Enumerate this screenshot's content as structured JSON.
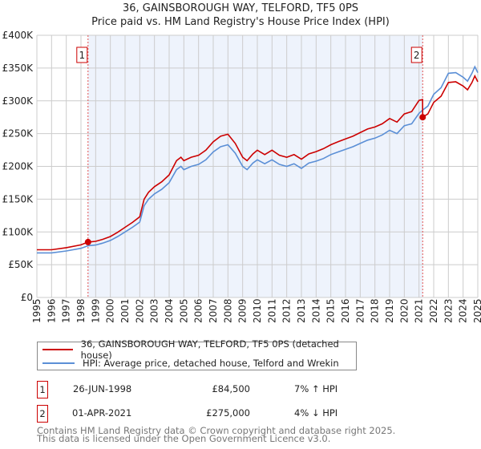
{
  "chart_data": {
    "type": "line",
    "title": "36, GAINSBOROUGH WAY, TELFORD, TF5 0PS",
    "subtitle": "Price paid vs. HM Land Registry's House Price Index (HPI)",
    "xlabel": "",
    "ylabel": "",
    "xlim": [
      1995,
      2025
    ],
    "ylim": [
      0,
      400000
    ],
    "x_ticks": [
      "1995",
      "1996",
      "1997",
      "1998",
      "1999",
      "2000",
      "2001",
      "2002",
      "2003",
      "2004",
      "2005",
      "2006",
      "2007",
      "2008",
      "2009",
      "2010",
      "2011",
      "2012",
      "2013",
      "2014",
      "2015",
      "2016",
      "2017",
      "2018",
      "2019",
      "2020",
      "2021",
      "2022",
      "2023",
      "2024",
      "2025"
    ],
    "y_ticks": [
      {
        "v": 0,
        "label": "£0"
      },
      {
        "v": 50000,
        "label": "£50K"
      },
      {
        "v": 100000,
        "label": "£100K"
      },
      {
        "v": 150000,
        "label": "£150K"
      },
      {
        "v": 200000,
        "label": "£200K"
      },
      {
        "v": 250000,
        "label": "£250K"
      },
      {
        "v": 300000,
        "label": "£300K"
      },
      {
        "v": 350000,
        "label": "£350K"
      },
      {
        "v": 400000,
        "label": "£400K"
      }
    ],
    "grid": true,
    "shaded_range": [
      1998.48,
      2021.25
    ],
    "series": [
      {
        "name": "36, GAINSBOROUGH WAY, TELFORD, TF5 0PS (detached house)",
        "color": "#cc0000",
        "points": [
          [
            1995,
            72.8
          ],
          [
            1996,
            72.8
          ],
          [
            1997,
            76
          ],
          [
            1998,
            80.3
          ],
          [
            1998.48,
            84.5
          ],
          [
            1999,
            85.6
          ],
          [
            1999.5,
            88.8
          ],
          [
            2000,
            93
          ],
          [
            2000.5,
            99.5
          ],
          [
            2001,
            107
          ],
          [
            2001.5,
            114.5
          ],
          [
            2002,
            123
          ],
          [
            2002.3,
            150
          ],
          [
            2002.6,
            160.5
          ],
          [
            2003,
            169
          ],
          [
            2003.5,
            176.5
          ],
          [
            2004,
            187
          ],
          [
            2004.5,
            208.7
          ],
          [
            2004.8,
            214
          ],
          [
            2005,
            208.7
          ],
          [
            2005.5,
            214
          ],
          [
            2006,
            217
          ],
          [
            2006.5,
            224.7
          ],
          [
            2007,
            237.5
          ],
          [
            2007.5,
            246
          ],
          [
            2008,
            249
          ],
          [
            2008.5,
            235
          ],
          [
            2009,
            214
          ],
          [
            2009.3,
            208.7
          ],
          [
            2009.7,
            219
          ],
          [
            2010,
            224.7
          ],
          [
            2010.5,
            218
          ],
          [
            2011,
            224.7
          ],
          [
            2011.5,
            217
          ],
          [
            2012,
            214
          ],
          [
            2012.5,
            218
          ],
          [
            2013,
            211
          ],
          [
            2013.5,
            219
          ],
          [
            2014,
            222.5
          ],
          [
            2014.5,
            227
          ],
          [
            2015,
            233
          ],
          [
            2015.5,
            237.5
          ],
          [
            2016,
            242
          ],
          [
            2016.5,
            246
          ],
          [
            2017,
            251.5
          ],
          [
            2017.5,
            257
          ],
          [
            2018,
            260
          ],
          [
            2018.5,
            265
          ],
          [
            2019,
            273
          ],
          [
            2019.5,
            267.5
          ],
          [
            2020,
            280
          ],
          [
            2020.5,
            283.5
          ],
          [
            2021,
            300.7
          ],
          [
            2021.24,
            302
          ],
          [
            2021.25,
            275
          ],
          [
            2021.6,
            280
          ],
          [
            2022,
            297.6
          ],
          [
            2022.5,
            307
          ],
          [
            2023,
            328
          ],
          [
            2023.5,
            329
          ],
          [
            2024,
            322.6
          ],
          [
            2024.3,
            316.8
          ],
          [
            2024.6,
            328
          ],
          [
            2024.8,
            338
          ],
          [
            2025,
            329
          ]
        ]
      },
      {
        "name": "HPI: Average price, detached house, Telford and Wrekin",
        "color": "#5b8fd6",
        "points": [
          [
            1995,
            68
          ],
          [
            1996,
            68
          ],
          [
            1997,
            71
          ],
          [
            1998,
            75
          ],
          [
            1998.5,
            79
          ],
          [
            1999,
            80
          ],
          [
            1999.5,
            83
          ],
          [
            2000,
            87
          ],
          [
            2000.5,
            93
          ],
          [
            2001,
            100
          ],
          [
            2001.5,
            107
          ],
          [
            2002,
            115
          ],
          [
            2002.3,
            140
          ],
          [
            2002.6,
            150
          ],
          [
            2003,
            158
          ],
          [
            2003.5,
            165
          ],
          [
            2004,
            175
          ],
          [
            2004.5,
            195
          ],
          [
            2004.8,
            200
          ],
          [
            2005,
            195
          ],
          [
            2005.5,
            200
          ],
          [
            2006,
            203
          ],
          [
            2006.5,
            210
          ],
          [
            2007,
            222
          ],
          [
            2007.5,
            230
          ],
          [
            2008,
            233
          ],
          [
            2008.5,
            220
          ],
          [
            2009,
            200
          ],
          [
            2009.3,
            195
          ],
          [
            2009.7,
            205
          ],
          [
            2010,
            210
          ],
          [
            2010.5,
            204
          ],
          [
            2011,
            210
          ],
          [
            2011.5,
            203
          ],
          [
            2012,
            200
          ],
          [
            2012.5,
            204
          ],
          [
            2013,
            197
          ],
          [
            2013.5,
            205
          ],
          [
            2014,
            208
          ],
          [
            2014.5,
            212
          ],
          [
            2015,
            218
          ],
          [
            2015.5,
            222
          ],
          [
            2016,
            226
          ],
          [
            2016.5,
            230
          ],
          [
            2017,
            235
          ],
          [
            2017.5,
            240
          ],
          [
            2018,
            243
          ],
          [
            2018.5,
            248
          ],
          [
            2019,
            255
          ],
          [
            2019.5,
            250
          ],
          [
            2020,
            262
          ],
          [
            2020.5,
            265
          ],
          [
            2021,
            281
          ],
          [
            2021.25,
            286
          ],
          [
            2021.6,
            292
          ],
          [
            2022,
            310
          ],
          [
            2022.5,
            320
          ],
          [
            2023,
            342
          ],
          [
            2023.5,
            343
          ],
          [
            2024,
            336
          ],
          [
            2024.3,
            330
          ],
          [
            2024.6,
            342
          ],
          [
            2024.8,
            352
          ],
          [
            2025,
            343
          ]
        ]
      }
    ],
    "series_units": "thousands GBP",
    "annotations": [
      {
        "label": "1",
        "x": 1998.48,
        "y": 84.5
      },
      {
        "label": "2",
        "x": 2021.25,
        "y": 275
      }
    ]
  },
  "legend": {
    "property": "36, GAINSBOROUGH WAY, TELFORD, TF5 0PS (detached house)",
    "hpi": "HPI: Average price, detached house, Telford and Wrekin"
  },
  "sales": [
    {
      "num": "1",
      "date": "26-JUN-1998",
      "price": "£84,500",
      "hpi": "7% ↑ HPI"
    },
    {
      "num": "2",
      "date": "01-APR-2021",
      "price": "£275,000",
      "hpi": "4% ↓ HPI"
    }
  ],
  "footer": {
    "line1": "Contains HM Land Registry data © Crown copyright and database right 2025.",
    "line2": "This data is licensed under the Open Government Licence v3.0."
  }
}
